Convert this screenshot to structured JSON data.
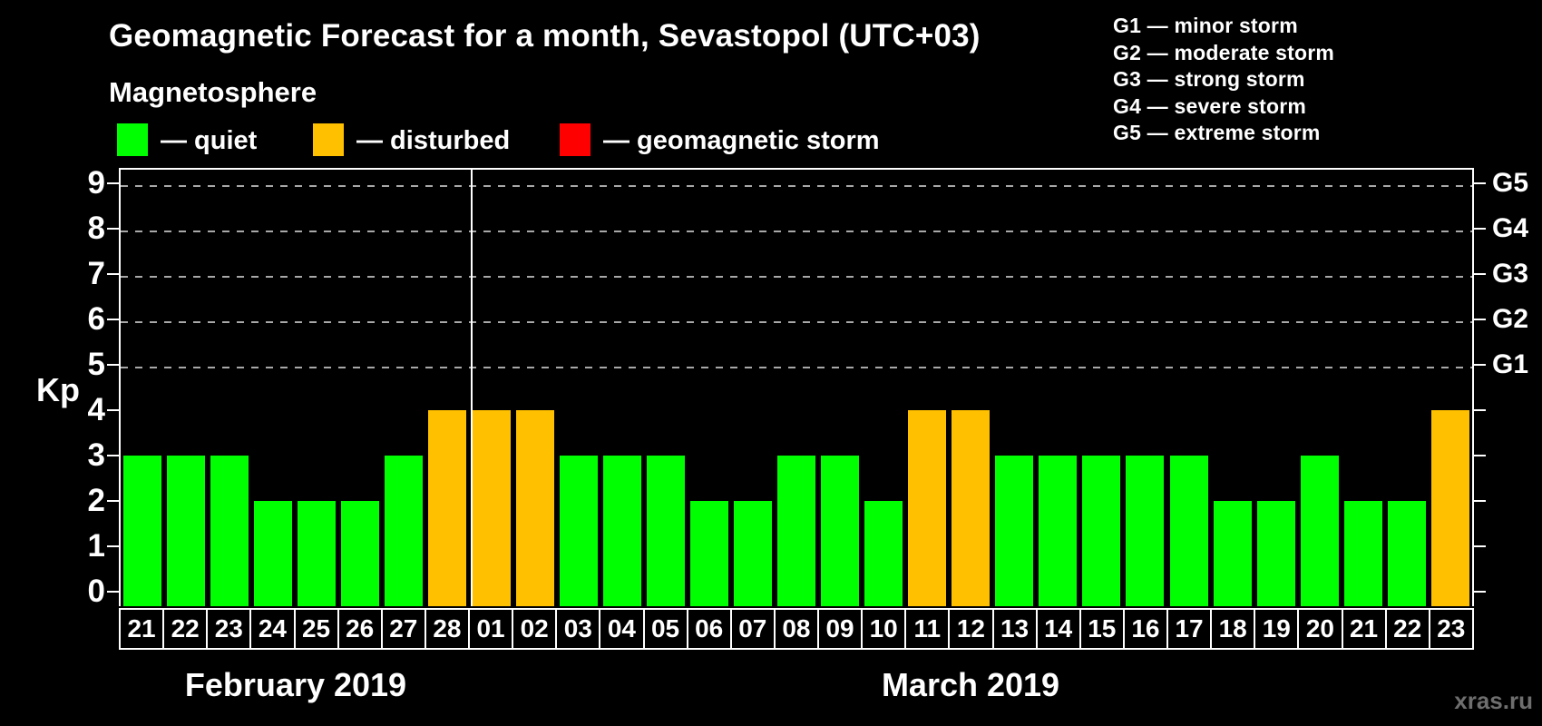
{
  "title": "Geomagnetic Forecast for a month, Sevastopol (UTC+03)",
  "subtitle": "Magnetosphere",
  "status_legend": [
    {
      "key": "quiet",
      "label": "— quiet",
      "color": "#00ff00"
    },
    {
      "key": "disturbed",
      "label": "— disturbed",
      "color": "#ffc000"
    },
    {
      "key": "storm",
      "label": "— geomagnetic storm",
      "color": "#ff0000"
    }
  ],
  "g_legend": [
    "G1 — minor storm",
    "G2 — moderate storm",
    "G3 — strong storm",
    "G4 — severe storm",
    "G5 — extreme storm"
  ],
  "y_axis": {
    "label": "Kp",
    "ticks": [
      0,
      1,
      2,
      3,
      4,
      5,
      6,
      7,
      8,
      9
    ]
  },
  "right_axis": {
    "labels": [
      "G1",
      "G2",
      "G3",
      "G4",
      "G5"
    ],
    "kp_values": [
      5,
      6,
      7,
      8,
      9
    ]
  },
  "months": [
    {
      "label": "February 2019"
    },
    {
      "label": "March 2019"
    }
  ],
  "watermark": "xras.ru",
  "chart_data": {
    "type": "bar",
    "title": "Geomagnetic Forecast for a month, Sevastopol (UTC+03)",
    "ylabel": "Kp",
    "ylim": [
      0,
      9
    ],
    "grid": "dashed horizontal at Kp 5-9",
    "gridlines_at_kp": [
      5,
      6,
      7,
      8,
      9
    ],
    "legend_position": "top-left",
    "status_colors": {
      "quiet": "#00ff00",
      "disturbed": "#ffc000",
      "storm": "#ff0000"
    },
    "series": [
      {
        "month": "February 2019",
        "days": [
          "21",
          "22",
          "23",
          "24",
          "25",
          "26",
          "27",
          "28"
        ],
        "kp": [
          3,
          3,
          3,
          2,
          2,
          2,
          3,
          4
        ],
        "status": [
          "quiet",
          "quiet",
          "quiet",
          "quiet",
          "quiet",
          "quiet",
          "quiet",
          "disturbed"
        ]
      },
      {
        "month": "March 2019",
        "days": [
          "01",
          "02",
          "03",
          "04",
          "05",
          "06",
          "07",
          "08",
          "09",
          "10",
          "11",
          "12",
          "13",
          "14",
          "15",
          "16",
          "17",
          "18",
          "19",
          "20",
          "21",
          "22",
          "23"
        ],
        "kp": [
          4,
          4,
          3,
          3,
          3,
          2,
          2,
          3,
          3,
          2,
          4,
          4,
          3,
          3,
          3,
          3,
          3,
          2,
          2,
          3,
          2,
          2,
          4
        ],
        "status": [
          "disturbed",
          "disturbed",
          "quiet",
          "quiet",
          "quiet",
          "quiet",
          "quiet",
          "quiet",
          "quiet",
          "quiet",
          "disturbed",
          "disturbed",
          "quiet",
          "quiet",
          "quiet",
          "quiet",
          "quiet",
          "quiet",
          "quiet",
          "quiet",
          "quiet",
          "quiet",
          "disturbed"
        ]
      }
    ]
  }
}
